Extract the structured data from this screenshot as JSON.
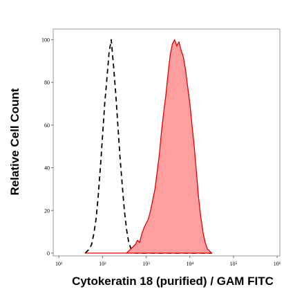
{
  "chart_data": {
    "type": "area",
    "x_label": "Cytokeratin 18 (purified) / GAM FITC",
    "y_label": "Relative Cell Count",
    "log_x": true,
    "xlim": [
      7.4,
      1150000
    ],
    "ylim": [
      -1.3,
      105
    ],
    "xticks": [
      {
        "value": 10,
        "label": "10¹"
      },
      {
        "value": 100,
        "label": "10²"
      },
      {
        "value": 1000,
        "label": "10³"
      },
      {
        "value": 10000,
        "label": "10⁴"
      },
      {
        "value": 100000,
        "label": "10⁵"
      },
      {
        "value": 1000000,
        "label": "10⁶"
      }
    ],
    "yticks": [
      0,
      20,
      40,
      60,
      80,
      100
    ],
    "x": [
      40,
      45,
      50,
      56,
      63,
      71,
      79,
      89,
      100,
      112,
      126,
      141,
      158,
      178,
      200,
      224,
      251,
      282,
      316,
      355,
      398,
      447,
      501,
      562,
      631,
      708,
      794,
      891,
      1000,
      1122,
      1259,
      1413,
      1585,
      1778,
      1995,
      2239,
      2512,
      2818,
      3162,
      3548,
      3981,
      4467,
      5012,
      5623,
      6310,
      7079,
      7943,
      8913,
      10000,
      11220,
      12589,
      14125,
      15849,
      17783,
      19953,
      22387,
      25119,
      28184,
      31623
    ],
    "series": [
      {
        "color": "#000000",
        "style": "dashed",
        "fill": false,
        "values": [
          0,
          1,
          2,
          4,
          9,
          16,
          26,
          40,
          55,
          70,
          82,
          94,
          100,
          88,
          75,
          60,
          45,
          32,
          20,
          11,
          5,
          2,
          1,
          0,
          0,
          0,
          0,
          0,
          0,
          0,
          0,
          0,
          0,
          0,
          0,
          0,
          0,
          0,
          0,
          0,
          0,
          0,
          0,
          0,
          0,
          0,
          0,
          0,
          0,
          0,
          0,
          0,
          0,
          0,
          0,
          0,
          0,
          0,
          0
        ]
      },
      {
        "color": "#e00000",
        "style": "solid",
        "fill": true,
        "fill_color": "#ff9e9e",
        "values": [
          0,
          0,
          0,
          0,
          0,
          0,
          0,
          0,
          0,
          0,
          0,
          0,
          0,
          0,
          0,
          0,
          0,
          0,
          0,
          0,
          1,
          2,
          3,
          4,
          6,
          5,
          9,
          12,
          14,
          16,
          20,
          25,
          30,
          38,
          46,
          57,
          66,
          74,
          84,
          93,
          98,
          100,
          97,
          99,
          95,
          92,
          86,
          78,
          70,
          60,
          50,
          38,
          26,
          17,
          10,
          5,
          2,
          1,
          0
        ]
      }
    ]
  }
}
